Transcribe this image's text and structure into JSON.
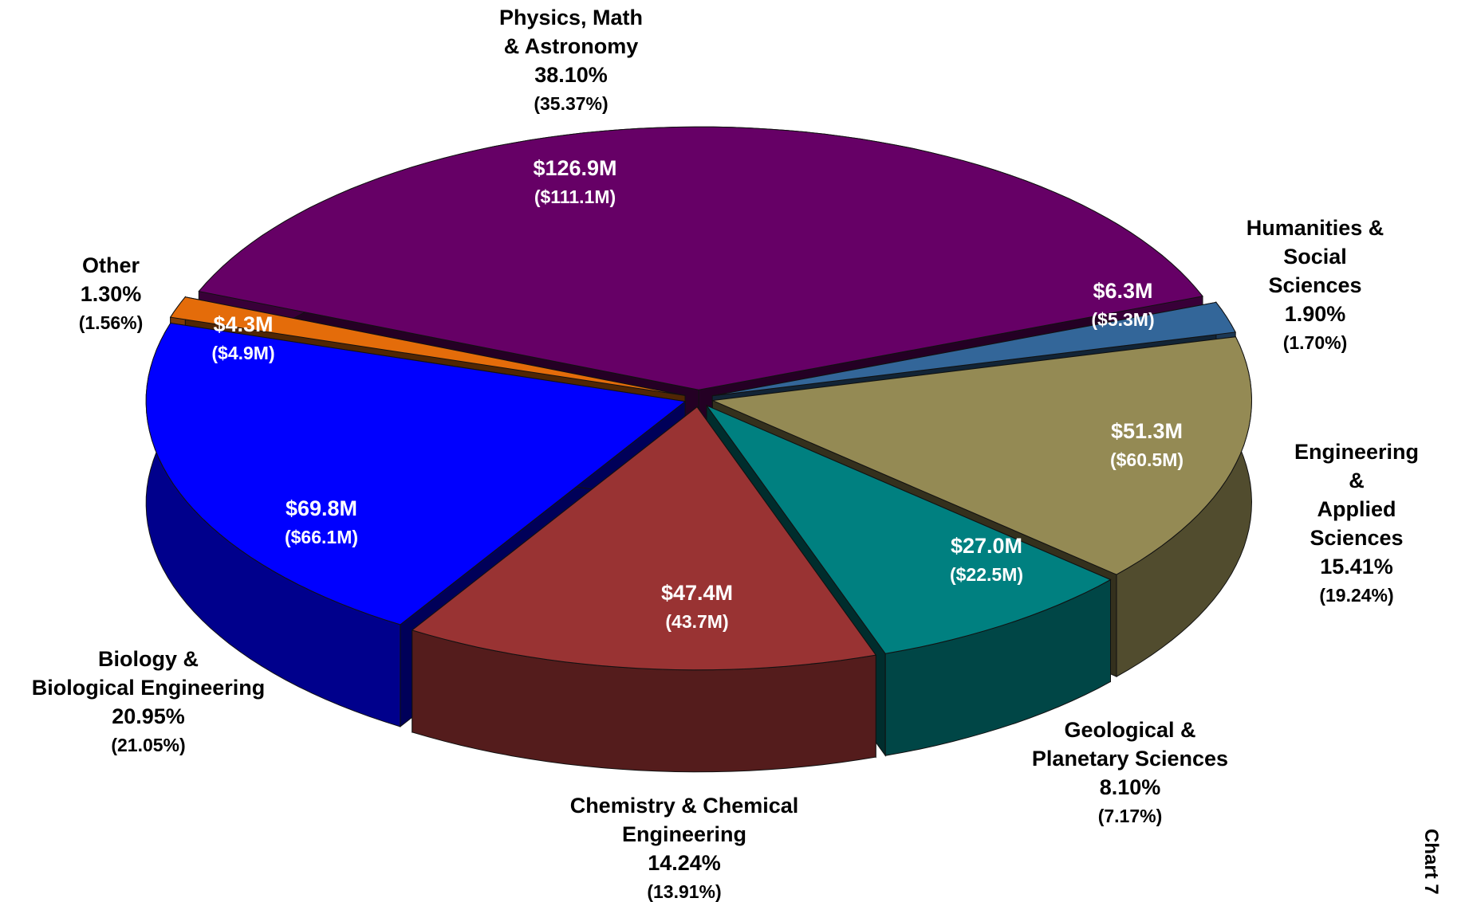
{
  "chart_data": {
    "type": "pie",
    "categories": [
      "Physics, Math\n& Astronomy",
      "Humanities &\nSocial Sciences",
      "Engineering &\nApplied Sciences",
      "Geological &\nPlanetary Sciences",
      "Chemistry & Chemical\nEngineering",
      "Biology &\nBiological Engineering",
      "Other"
    ],
    "values": [
      38.1,
      1.9,
      15.41,
      8.1,
      14.24,
      20.95,
      1.3
    ],
    "value_labels": [
      "38.10%",
      "1.90%",
      "15.41%",
      "8.10%",
      "14.24%",
      "20.95%",
      "1.30%"
    ],
    "prior_value_labels": [
      "(35.37%)",
      "(1.70%)",
      "(19.24%)",
      "(7.17%)",
      "(13.91%)",
      "(21.05%)",
      "(1.56%)"
    ],
    "amount_labels": [
      "$126.9M",
      "$6.3M",
      "$51.3M",
      "$27.0M",
      "$47.4M",
      "$69.8M",
      "$4.3M"
    ],
    "prior_amount_labels": [
      "($111.1M)",
      "($5.3M)",
      "($60.5M)",
      "($22.5M)",
      "(43.7M)",
      "($66.1M)",
      "($4.9M)"
    ],
    "colors": [
      "#660066",
      "#336699",
      "#948a54",
      "#008080",
      "#993333",
      "#0000ff",
      "#e46c0a"
    ],
    "chart_label": "Chart 7"
  }
}
